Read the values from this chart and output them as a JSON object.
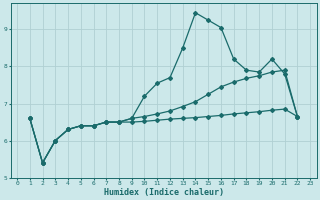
{
  "xlabel": "Humidex (Indice chaleur)",
  "ylabel": "",
  "bg_color": "#cce8ea",
  "grid_color": "#b0d0d3",
  "line_color": "#1a6b6b",
  "xlim": [
    -0.5,
    23.5
  ],
  "ylim": [
    5.0,
    9.7
  ],
  "yticks": [
    5,
    6,
    7,
    8,
    9
  ],
  "xticks": [
    0,
    1,
    2,
    3,
    4,
    5,
    6,
    7,
    8,
    9,
    10,
    11,
    12,
    13,
    14,
    15,
    16,
    17,
    18,
    19,
    20,
    21,
    22,
    23
  ],
  "series": [
    [
      6.6,
      5.4,
      6.0,
      6.3,
      6.4,
      6.4,
      6.5,
      6.5,
      6.6,
      7.2,
      7.55,
      7.7,
      8.5,
      9.45,
      9.25,
      9.05,
      8.2,
      7.9,
      7.85,
      8.2,
      7.8,
      6.65
    ],
    [
      6.6,
      5.4,
      6.0,
      6.3,
      6.4,
      6.4,
      6.5,
      6.5,
      6.6,
      6.65,
      6.72,
      6.8,
      6.92,
      7.05,
      7.25,
      7.45,
      7.58,
      7.68,
      7.75,
      7.85,
      7.9,
      6.65
    ],
    [
      6.6,
      5.4,
      6.0,
      6.3,
      6.4,
      6.4,
      6.5,
      6.5,
      6.5,
      6.52,
      6.55,
      6.58,
      6.6,
      6.62,
      6.65,
      6.68,
      6.72,
      6.75,
      6.78,
      6.82,
      6.85,
      6.65
    ]
  ],
  "x_start": 1,
  "marker": "D",
  "markersize": 2.0,
  "linewidth": 0.9
}
